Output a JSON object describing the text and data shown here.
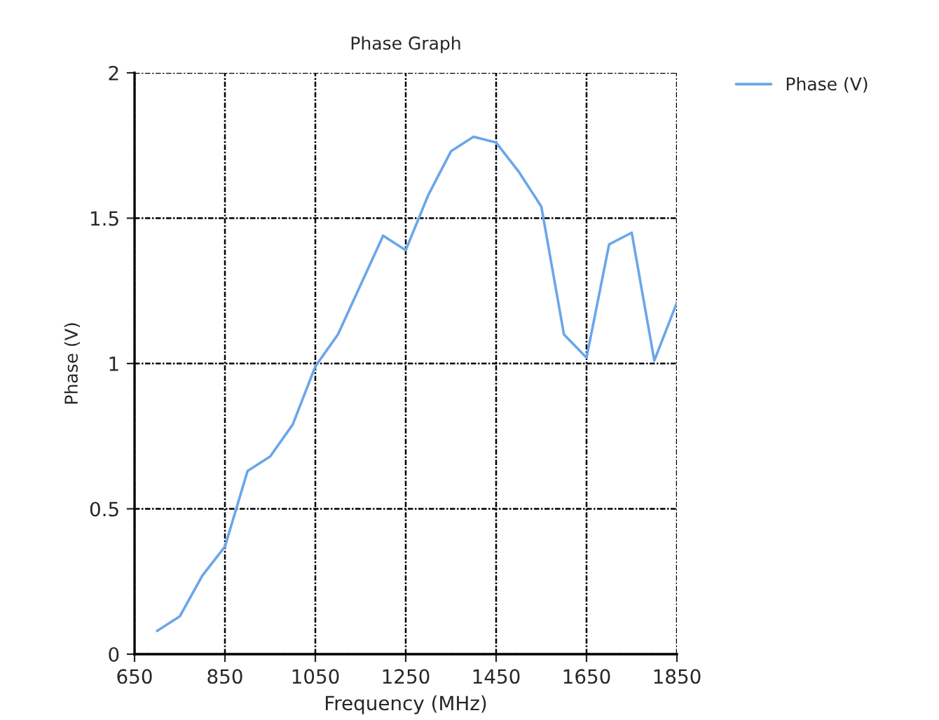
{
  "chart_data": {
    "type": "line",
    "title": "Phase Graph",
    "xlabel": "Frequency (MHz)",
    "ylabel": "Phase (V)",
    "x": [
      700,
      750,
      800,
      850,
      900,
      950,
      1000,
      1050,
      1100,
      1150,
      1200,
      1250,
      1300,
      1350,
      1400,
      1450,
      1500,
      1550,
      1600,
      1650,
      1700,
      1750,
      1800,
      1850
    ],
    "series": [
      {
        "name": "Phase (V)",
        "color": "#6aa6ea",
        "values": [
          0.08,
          0.13,
          0.27,
          0.37,
          0.63,
          0.68,
          0.79,
          0.99,
          1.1,
          1.27,
          1.44,
          1.39,
          1.58,
          1.73,
          1.78,
          1.76,
          1.66,
          1.54,
          1.1,
          1.02,
          1.41,
          1.45,
          1.01,
          1.21
        ]
      }
    ],
    "xlim": [
      650,
      1850
    ],
    "xticks": [
      650,
      850,
      1050,
      1250,
      1450,
      1650,
      1850
    ],
    "ylim": [
      0,
      2
    ],
    "yticks": [
      0,
      0.5,
      1,
      1.5,
      2
    ],
    "grid": true,
    "legend": "top right",
    "marker": "none",
    "line_style": "solid"
  }
}
